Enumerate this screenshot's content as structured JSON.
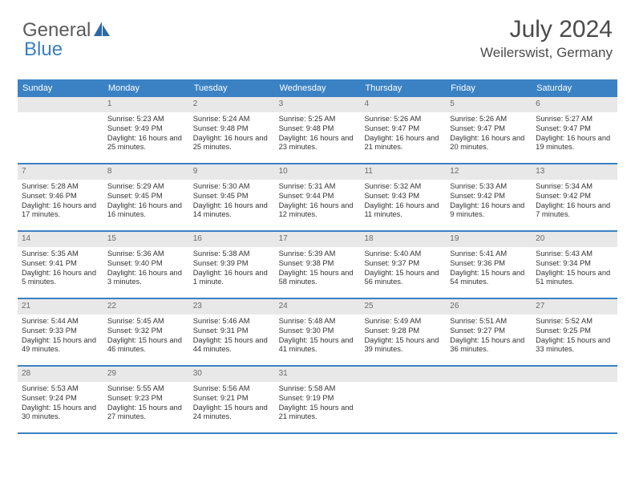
{
  "logo": {
    "gray": "General",
    "blue": "Blue",
    "icon_color": "#2d6aa3"
  },
  "header": {
    "month_title": "July 2024",
    "location": "Weilerswist, Germany"
  },
  "colors": {
    "header_bg": "#3b82c4",
    "header_text": "#ffffff",
    "daynum_bg": "#e8e8e8",
    "daynum_text": "#6a6a6a",
    "week_border": "#3b82c4",
    "body_text": "#333333",
    "title_text": "#4a4a4a"
  },
  "day_names": [
    "Sunday",
    "Monday",
    "Tuesday",
    "Wednesday",
    "Thursday",
    "Friday",
    "Saturday"
  ],
  "weeks": [
    [
      {
        "num": "",
        "lines": []
      },
      {
        "num": "1",
        "lines": [
          "Sunrise: 5:23 AM",
          "Sunset: 9:49 PM",
          "Daylight: 16 hours and 25 minutes."
        ]
      },
      {
        "num": "2",
        "lines": [
          "Sunrise: 5:24 AM",
          "Sunset: 9:48 PM",
          "Daylight: 16 hours and 25 minutes."
        ]
      },
      {
        "num": "3",
        "lines": [
          "Sunrise: 5:25 AM",
          "Sunset: 9:48 PM",
          "Daylight: 16 hours and 23 minutes."
        ]
      },
      {
        "num": "4",
        "lines": [
          "Sunrise: 5:26 AM",
          "Sunset: 9:47 PM",
          "Daylight: 16 hours and 21 minutes."
        ]
      },
      {
        "num": "5",
        "lines": [
          "Sunrise: 5:26 AM",
          "Sunset: 9:47 PM",
          "Daylight: 16 hours and 20 minutes."
        ]
      },
      {
        "num": "6",
        "lines": [
          "Sunrise: 5:27 AM",
          "Sunset: 9:47 PM",
          "Daylight: 16 hours and 19 minutes."
        ]
      }
    ],
    [
      {
        "num": "7",
        "lines": [
          "Sunrise: 5:28 AM",
          "Sunset: 9:46 PM",
          "Daylight: 16 hours and 17 minutes."
        ]
      },
      {
        "num": "8",
        "lines": [
          "Sunrise: 5:29 AM",
          "Sunset: 9:45 PM",
          "Daylight: 16 hours and 16 minutes."
        ]
      },
      {
        "num": "9",
        "lines": [
          "Sunrise: 5:30 AM",
          "Sunset: 9:45 PM",
          "Daylight: 16 hours and 14 minutes."
        ]
      },
      {
        "num": "10",
        "lines": [
          "Sunrise: 5:31 AM",
          "Sunset: 9:44 PM",
          "Daylight: 16 hours and 12 minutes."
        ]
      },
      {
        "num": "11",
        "lines": [
          "Sunrise: 5:32 AM",
          "Sunset: 9:43 PM",
          "Daylight: 16 hours and 11 minutes."
        ]
      },
      {
        "num": "12",
        "lines": [
          "Sunrise: 5:33 AM",
          "Sunset: 9:42 PM",
          "Daylight: 16 hours and 9 minutes."
        ]
      },
      {
        "num": "13",
        "lines": [
          "Sunrise: 5:34 AM",
          "Sunset: 9:42 PM",
          "Daylight: 16 hours and 7 minutes."
        ]
      }
    ],
    [
      {
        "num": "14",
        "lines": [
          "Sunrise: 5:35 AM",
          "Sunset: 9:41 PM",
          "Daylight: 16 hours and 5 minutes."
        ]
      },
      {
        "num": "15",
        "lines": [
          "Sunrise: 5:36 AM",
          "Sunset: 9:40 PM",
          "Daylight: 16 hours and 3 minutes."
        ]
      },
      {
        "num": "16",
        "lines": [
          "Sunrise: 5:38 AM",
          "Sunset: 9:39 PM",
          "Daylight: 16 hours and 1 minute."
        ]
      },
      {
        "num": "17",
        "lines": [
          "Sunrise: 5:39 AM",
          "Sunset: 9:38 PM",
          "Daylight: 15 hours and 58 minutes."
        ]
      },
      {
        "num": "18",
        "lines": [
          "Sunrise: 5:40 AM",
          "Sunset: 9:37 PM",
          "Daylight: 15 hours and 56 minutes."
        ]
      },
      {
        "num": "19",
        "lines": [
          "Sunrise: 5:41 AM",
          "Sunset: 9:36 PM",
          "Daylight: 15 hours and 54 minutes."
        ]
      },
      {
        "num": "20",
        "lines": [
          "Sunrise: 5:43 AM",
          "Sunset: 9:34 PM",
          "Daylight: 15 hours and 51 minutes."
        ]
      }
    ],
    [
      {
        "num": "21",
        "lines": [
          "Sunrise: 5:44 AM",
          "Sunset: 9:33 PM",
          "Daylight: 15 hours and 49 minutes."
        ]
      },
      {
        "num": "22",
        "lines": [
          "Sunrise: 5:45 AM",
          "Sunset: 9:32 PM",
          "Daylight: 15 hours and 46 minutes."
        ]
      },
      {
        "num": "23",
        "lines": [
          "Sunrise: 5:46 AM",
          "Sunset: 9:31 PM",
          "Daylight: 15 hours and 44 minutes."
        ]
      },
      {
        "num": "24",
        "lines": [
          "Sunrise: 5:48 AM",
          "Sunset: 9:30 PM",
          "Daylight: 15 hours and 41 minutes."
        ]
      },
      {
        "num": "25",
        "lines": [
          "Sunrise: 5:49 AM",
          "Sunset: 9:28 PM",
          "Daylight: 15 hours and 39 minutes."
        ]
      },
      {
        "num": "26",
        "lines": [
          "Sunrise: 5:51 AM",
          "Sunset: 9:27 PM",
          "Daylight: 15 hours and 36 minutes."
        ]
      },
      {
        "num": "27",
        "lines": [
          "Sunrise: 5:52 AM",
          "Sunset: 9:25 PM",
          "Daylight: 15 hours and 33 minutes."
        ]
      }
    ],
    [
      {
        "num": "28",
        "lines": [
          "Sunrise: 5:53 AM",
          "Sunset: 9:24 PM",
          "Daylight: 15 hours and 30 minutes."
        ]
      },
      {
        "num": "29",
        "lines": [
          "Sunrise: 5:55 AM",
          "Sunset: 9:23 PM",
          "Daylight: 15 hours and 27 minutes."
        ]
      },
      {
        "num": "30",
        "lines": [
          "Sunrise: 5:56 AM",
          "Sunset: 9:21 PM",
          "Daylight: 15 hours and 24 minutes."
        ]
      },
      {
        "num": "31",
        "lines": [
          "Sunrise: 5:58 AM",
          "Sunset: 9:19 PM",
          "Daylight: 15 hours and 21 minutes."
        ]
      },
      {
        "num": "",
        "lines": []
      },
      {
        "num": "",
        "lines": []
      },
      {
        "num": "",
        "lines": []
      }
    ]
  ]
}
